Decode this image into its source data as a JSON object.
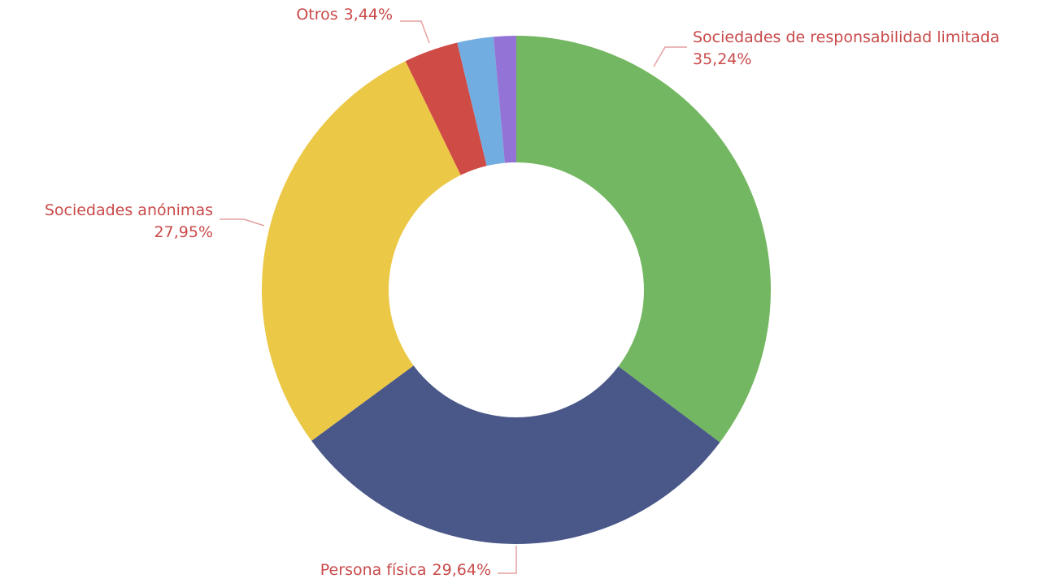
{
  "chart_data": {
    "type": "pie",
    "categories": [
      "Sociedades de responsabilidad limitada",
      "Persona física",
      "Sociedades anónimas",
      "Otros",
      null,
      null
    ],
    "values": [
      35.24,
      29.64,
      27.95,
      3.44,
      2.3,
      1.43
    ],
    "value_labels": [
      "35,24%",
      "29,64%",
      "27,95%",
      "3,44%",
      null,
      null
    ],
    "colors": [
      "#74b762",
      "#4a5889",
      "#ebc846",
      "#cf4b45",
      "#72ade2",
      "#9473d6"
    ]
  }
}
